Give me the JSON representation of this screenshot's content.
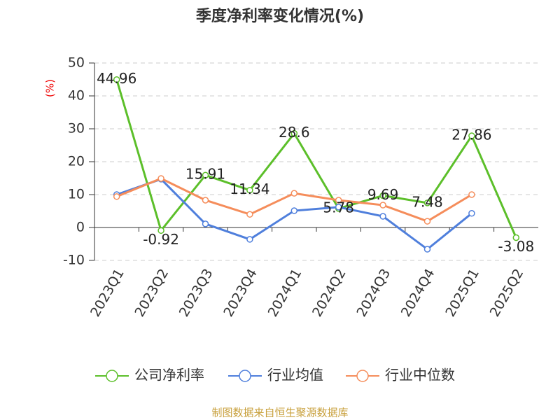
{
  "chart_data": {
    "type": "line",
    "title": "季度净利率变化情况(%)",
    "y_label": "(%)",
    "categories": [
      "2023Q1",
      "2023Q2",
      "2023Q3",
      "2023Q4",
      "2024Q1",
      "2024Q2",
      "2024Q3",
      "2024Q4",
      "2025Q1",
      "2025Q2"
    ],
    "series": [
      {
        "name": "公司净利率",
        "color": "#5cbf2a",
        "values": [
          44.96,
          -0.92,
          15.91,
          11.34,
          28.6,
          5.78,
          9.69,
          7.48,
          27.86,
          -3.08
        ],
        "labels": true
      },
      {
        "name": "行业均值",
        "color": "#4f7fdc",
        "values": [
          10.0,
          14.7,
          1.1,
          -3.6,
          5.1,
          6.2,
          3.4,
          -6.6,
          4.3,
          null
        ]
      },
      {
        "name": "行业中位数",
        "color": "#f58d5b",
        "values": [
          9.4,
          14.9,
          8.3,
          4.0,
          10.4,
          8.3,
          6.8,
          1.9,
          10.0,
          null
        ]
      }
    ],
    "ylim": [
      -10,
      50
    ],
    "yticks": [
      -10,
      0,
      10,
      20,
      30,
      40,
      50
    ],
    "grid": true,
    "source": "制图数据来自恒生聚源数据库"
  }
}
